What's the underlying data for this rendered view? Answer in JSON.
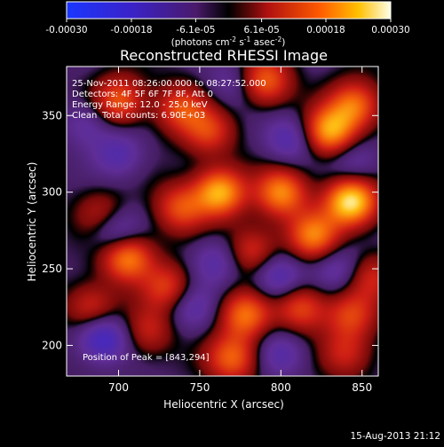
{
  "colorbar": {
    "tick_labels": [
      "-0.00030",
      "-0.00018",
      "-6.1e-05",
      "6.1e-05",
      "0.00018",
      "0.00030"
    ],
    "tick_values": [
      -0.0003,
      -0.00018,
      -6.1e-05,
      6.1e-05,
      0.00018,
      0.0003
    ],
    "range": [
      -0.0003,
      0.0003
    ],
    "unit_label_main": "(photons cm",
    "unit_sup1": "-2",
    "unit_mid1": " s",
    "unit_sup2": "-1",
    "unit_mid2": " asec",
    "unit_sup3": "-2",
    "unit_close": ")"
  },
  "chart_data": {
    "type": "heatmap",
    "title": "Reconstructed RHESSI Image",
    "xlabel": "Heliocentric X (arcsec)",
    "ylabel": "Heliocentric Y (arcsec)",
    "xlim": [
      668,
      860
    ],
    "ylim": [
      180,
      382
    ],
    "x_ticks": [
      700,
      750,
      800,
      850
    ],
    "y_ticks": [
      200,
      250,
      300,
      350
    ],
    "x_tick_labels": [
      "700",
      "750",
      "800",
      "850"
    ],
    "y_tick_labels": [
      "200",
      "250",
      "300",
      "350"
    ],
    "colors": {
      "low": "#1530e0",
      "mid_low": "#5a2a9a",
      "zero": "#000000",
      "mid_high": "#d02010",
      "high": "#ff8000",
      "max": "#ffff80"
    },
    "annotations": [
      "25-Nov-2011 08:26:00.000 to 08:27:52.000",
      "Detectors: 4F 5F 6F 7F 8F, Att 0",
      "Energy Range: 12.0 - 25.0 keV",
      "Clean",
      "Total counts: 6.90E+03"
    ],
    "peak_label": "Position of Peak = [843,294]",
    "peak": [
      843,
      294
    ],
    "sources": [
      {
        "x": 843,
        "y": 294,
        "v": 1.0
      },
      {
        "x": 830,
        "y": 340,
        "v": 0.78
      },
      {
        "x": 845,
        "y": 357,
        "v": 0.62
      },
      {
        "x": 790,
        "y": 373,
        "v": 0.58
      },
      {
        "x": 762,
        "y": 300,
        "v": 0.82
      },
      {
        "x": 755,
        "y": 340,
        "v": 0.45
      },
      {
        "x": 700,
        "y": 360,
        "v": 0.55
      },
      {
        "x": 738,
        "y": 355,
        "v": 0.48
      },
      {
        "x": 800,
        "y": 300,
        "v": 0.7
      },
      {
        "x": 820,
        "y": 272,
        "v": 0.66
      },
      {
        "x": 782,
        "y": 262,
        "v": 0.42
      },
      {
        "x": 705,
        "y": 258,
        "v": 0.72
      },
      {
        "x": 730,
        "y": 238,
        "v": 0.45
      },
      {
        "x": 738,
        "y": 290,
        "v": 0.5
      },
      {
        "x": 778,
        "y": 220,
        "v": 0.62
      },
      {
        "x": 812,
        "y": 225,
        "v": 0.5
      },
      {
        "x": 843,
        "y": 220,
        "v": 0.45
      },
      {
        "x": 770,
        "y": 192,
        "v": 0.58
      },
      {
        "x": 840,
        "y": 195,
        "v": 0.35
      },
      {
        "x": 718,
        "y": 210,
        "v": 0.35
      },
      {
        "x": 683,
        "y": 225,
        "v": 0.4
      },
      {
        "x": 690,
        "y": 285,
        "v": 0.35
      },
      {
        "x": 855,
        "y": 245,
        "v": 0.35
      },
      {
        "x": 698,
        "y": 275,
        "v": -0.45
      },
      {
        "x": 690,
        "y": 205,
        "v": -0.55
      },
      {
        "x": 700,
        "y": 325,
        "v": -0.32
      },
      {
        "x": 805,
        "y": 335,
        "v": -0.35
      },
      {
        "x": 845,
        "y": 320,
        "v": -0.28
      },
      {
        "x": 760,
        "y": 255,
        "v": -0.3
      },
      {
        "x": 798,
        "y": 245,
        "v": -0.4
      },
      {
        "x": 745,
        "y": 225,
        "v": -0.3
      },
      {
        "x": 835,
        "y": 250,
        "v": -0.3
      },
      {
        "x": 800,
        "y": 195,
        "v": -0.3
      },
      {
        "x": 770,
        "y": 372,
        "v": -0.22
      },
      {
        "x": 680,
        "y": 345,
        "v": -0.25
      }
    ]
  },
  "date_stamp": "15-Aug-2013 21:12"
}
